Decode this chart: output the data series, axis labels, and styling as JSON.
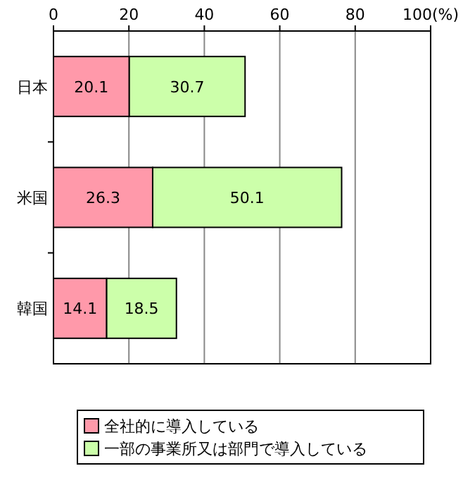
{
  "chart_data": {
    "type": "bar",
    "orientation": "horizontal",
    "stacked": true,
    "categories": [
      "日本",
      "米国",
      "韓国"
    ],
    "series": [
      {
        "name": "全社的に導入している",
        "color": "#ff99aa",
        "values": [
          20.1,
          26.3,
          14.1
        ]
      },
      {
        "name": "一部の事業所又は部門で導入している",
        "color": "#ccffaa",
        "values": [
          30.7,
          50.1,
          18.5
        ]
      }
    ],
    "xlim": [
      0,
      100
    ],
    "xticks": [
      0,
      20,
      40,
      60,
      80,
      {
        "value": 100,
        "label": "100(%)"
      }
    ],
    "grid": "x",
    "data_labels": true,
    "legend": "bottom"
  }
}
